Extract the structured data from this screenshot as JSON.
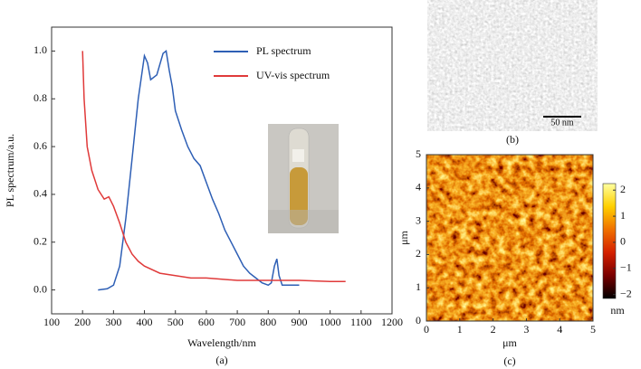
{
  "chart_data": [
    {
      "type": "line",
      "xlabel": "Wavelength/nm",
      "ylabel": "PL spectrum/a.u.",
      "panel_label": "(a)",
      "xlim": [
        100,
        1200
      ],
      "ylim": [
        -0.1,
        1.1
      ],
      "xticks": [
        100,
        200,
        300,
        400,
        500,
        600,
        700,
        800,
        900,
        1000,
        1100,
        1200
      ],
      "yticks": [
        {
          "value": 0,
          "label": "0.0"
        },
        {
          "value": 0.2,
          "label": "0.2"
        },
        {
          "value": 0.4,
          "label": "0.4"
        },
        {
          "value": 0.6,
          "label": "0.6"
        },
        {
          "value": 0.8,
          "label": "0.8"
        },
        {
          "value": 1,
          "label": "1.0"
        }
      ],
      "legend": "upper right",
      "series": [
        {
          "name": "PL spectrum",
          "color": "#2e5fb5",
          "x": [
            250,
            280,
            300,
            320,
            340,
            360,
            380,
            400,
            410,
            420,
            440,
            460,
            470,
            480,
            490,
            500,
            520,
            540,
            560,
            580,
            600,
            620,
            640,
            660,
            680,
            700,
            720,
            740,
            760,
            780,
            800,
            810,
            820,
            828,
            835,
            845,
            860,
            880,
            900
          ],
          "values": [
            0,
            0.005,
            0.02,
            0.1,
            0.3,
            0.55,
            0.8,
            0.98,
            0.95,
            0.88,
            0.9,
            0.99,
            1.0,
            0.92,
            0.85,
            0.75,
            0.67,
            0.6,
            0.55,
            0.52,
            0.45,
            0.38,
            0.32,
            0.25,
            0.2,
            0.15,
            0.1,
            0.07,
            0.05,
            0.03,
            0.02,
            0.03,
            0.1,
            0.13,
            0.06,
            0.02,
            0.02,
            0.02,
            0.02
          ]
        },
        {
          "name": "UV-vis spectrum",
          "color": "#e03a3a",
          "x": [
            200,
            205,
            215,
            230,
            250,
            270,
            285,
            300,
            320,
            340,
            360,
            380,
            400,
            450,
            500,
            550,
            600,
            700,
            800,
            900,
            1000,
            1050
          ],
          "values": [
            1.0,
            0.8,
            0.6,
            0.5,
            0.42,
            0.38,
            0.39,
            0.35,
            0.28,
            0.2,
            0.15,
            0.12,
            0.1,
            0.07,
            0.06,
            0.05,
            0.05,
            0.04,
            0.04,
            0.04,
            0.035,
            0.035
          ]
        }
      ]
    },
    {
      "type": "image",
      "panel_label": "(b)",
      "scale_bar": "50 nm"
    },
    {
      "type": "heatmap",
      "panel_label": "(c)",
      "xlabel": "μm",
      "ylabel": "μm",
      "xlim": [
        0,
        5
      ],
      "ylim": [
        0,
        5
      ],
      "xticks": [
        0,
        1,
        2,
        3,
        4,
        5
      ],
      "yticks": [
        0,
        1,
        2,
        3,
        4,
        5
      ],
      "colorbar": {
        "label": "nm",
        "lim": [
          -2.15,
          2.25
        ],
        "ticks": [
          {
            "value": -2,
            "label": "−2"
          },
          {
            "value": -1,
            "label": "−1"
          },
          0,
          1,
          2
        ],
        "colormap": [
          "#000000",
          "#7a0000",
          "#d42000",
          "#f07000",
          "#ffd000",
          "#ffffa0"
        ]
      }
    }
  ]
}
